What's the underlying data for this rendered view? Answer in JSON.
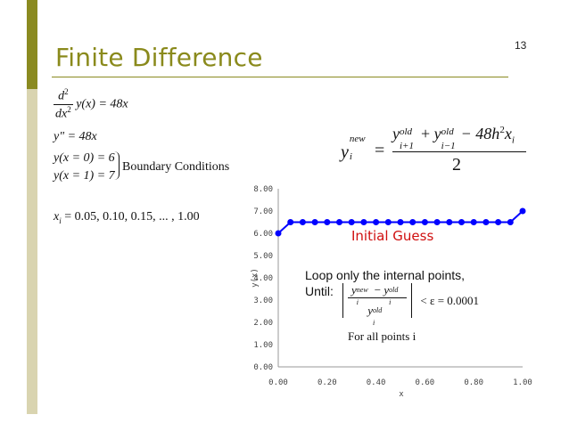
{
  "slide": {
    "title": "Finite Difference",
    "page_number": "13",
    "colors": {
      "accent": "#8a8a20",
      "accent_light": "#d9d4b0",
      "series": "#0000ff",
      "annotation": "#d01010"
    }
  },
  "equations": {
    "ode_num": "d",
    "ode_num_sup": "2",
    "ode_den": "dx",
    "ode_den_sup": "2",
    "ode_rhs": "y(x) = 48x",
    "second_deriv": "y\" = 48x",
    "bc1": "y(x = 0) = 6",
    "bc2": "y(x = 1) = 7",
    "bc_label": "Boundary Conditions",
    "xi_lhs": "x",
    "xi_sub": "i",
    "xi_rhs": "= 0.05, 0.10, 0.15, ... , 1.00"
  },
  "update_formula": {
    "lhs": "y",
    "lhs_sup": "new",
    "lhs_sub": "i",
    "equals": "=",
    "t1": "y",
    "t1_sup": "old",
    "t1_sub": "i+1",
    "plus": "+",
    "t2": "y",
    "t2_sup": "old",
    "t2_sub": "i−1",
    "minus": "− 48h",
    "h_sup": "2",
    "xi": "x",
    "xi_sub": "i",
    "denominator": "2"
  },
  "annotations": {
    "initial_guess": "Initial Guess",
    "loop_line1": "Loop only the internal points,",
    "loop_line2": "Until:",
    "conv_rhs": "< ε = 0.0001",
    "conv_num_a": "y",
    "conv_num_a_sup": "new",
    "conv_num_a_sub": "i",
    "conv_minus": "−",
    "conv_num_b": "y",
    "conv_num_b_sup": "old",
    "conv_num_b_sub": "i",
    "conv_den": "y",
    "conv_den_sup": "old",
    "conv_den_sub": "i",
    "for_all": "For all points i"
  },
  "chart_data": {
    "type": "line",
    "title": "",
    "xlabel": "x",
    "ylabel": "y(x)",
    "xlim": [
      0,
      1
    ],
    "ylim": [
      0,
      8
    ],
    "x_ticks": [
      "0.00",
      "0.20",
      "0.40",
      "0.60",
      "0.80",
      "1.00"
    ],
    "y_ticks": [
      "0.00",
      "1.00",
      "2.00",
      "3.00",
      "4.00",
      "5.00",
      "6.00",
      "7.00",
      "8.00"
    ],
    "grid": false,
    "series": [
      {
        "x": [
          0,
          0.05,
          0.1,
          0.15,
          0.2,
          0.25,
          0.3,
          0.35,
          0.4,
          0.45,
          0.5,
          0.55,
          0.6,
          0.65,
          0.7,
          0.75,
          0.8,
          0.85,
          0.9,
          0.95,
          1.0
        ],
        "values": [
          6.0,
          6.5,
          6.5,
          6.5,
          6.5,
          6.5,
          6.5,
          6.5,
          6.5,
          6.5,
          6.5,
          6.5,
          6.5,
          6.5,
          6.5,
          6.5,
          6.5,
          6.5,
          6.5,
          6.5,
          7.0
        ]
      }
    ]
  }
}
